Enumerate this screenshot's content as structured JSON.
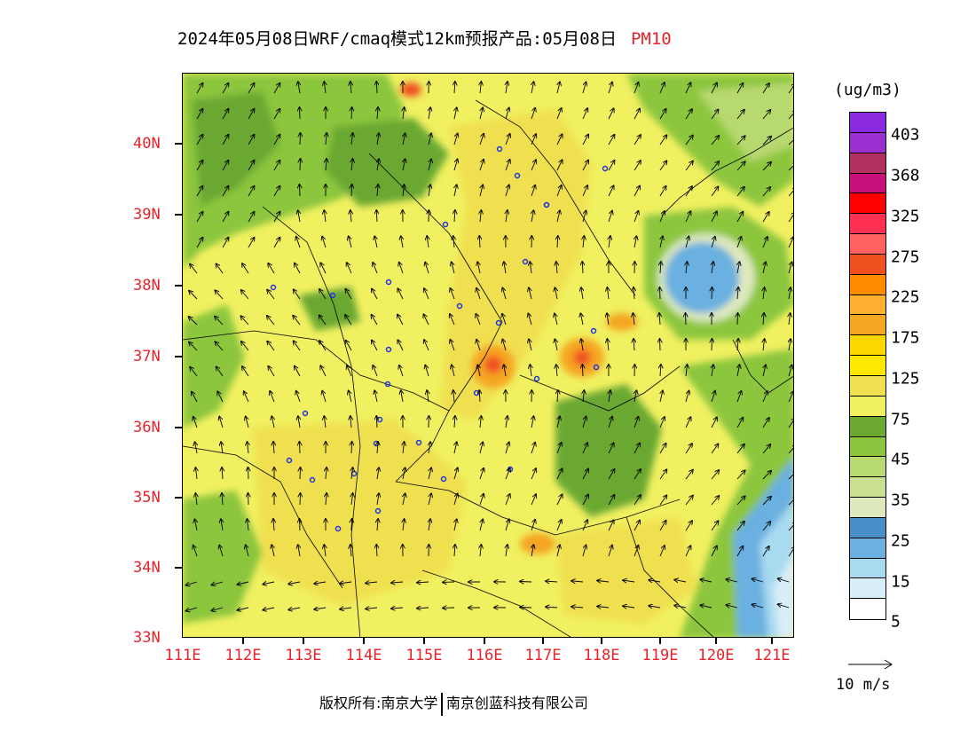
{
  "title": {
    "main": "2024年05月08日WRF/cmaq模式12km预报产品:05月08日",
    "variable": "PM10"
  },
  "axes": {
    "y_labels": [
      "40N",
      "39N",
      "38N",
      "37N",
      "36N",
      "35N",
      "34N",
      "33N"
    ],
    "x_labels": [
      "111E",
      "112E",
      "113E",
      "114E",
      "115E",
      "116E",
      "117E",
      "118E",
      "119E",
      "120E",
      "121E"
    ]
  },
  "colorbar": {
    "unit": "(ug/m3)",
    "labels": [
      "403",
      "368",
      "325",
      "275",
      "225",
      "175",
      "125",
      "75",
      "45",
      "35",
      "25",
      "15",
      "5"
    ],
    "colors": [
      "#8a2be2",
      "#9b30d0",
      "#b03060",
      "#c8107a",
      "#ff0000",
      "#ff3050",
      "#ff6060",
      "#f05020",
      "#ff8c00",
      "#ffb030",
      "#f5a623",
      "#ffd700",
      "#ffe800",
      "#f0e050",
      "#f0f060",
      "#6aa830",
      "#8cc63e",
      "#b8d870",
      "#c8e090",
      "#dde8bd",
      "#4a90c8",
      "#6bb0e0",
      "#a8daf0",
      "#d8eef8",
      "#ffffff"
    ]
  },
  "wind_vector": {
    "label": "10 m/s"
  },
  "footer": {
    "left": "版权所有:南京大学",
    "right": "南京创蓝科技有限公司"
  }
}
